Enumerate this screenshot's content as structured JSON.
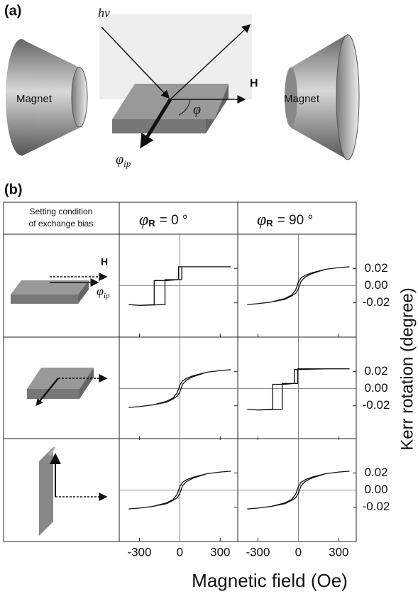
{
  "figure": {
    "panel_a": "(a)",
    "panel_b": "(b)",
    "photon": "hν",
    "magnet_left": "Magnet",
    "magnet_right": "Magnet",
    "field": "H",
    "angle": "φ",
    "in_plane": {
      "symbol": "φ",
      "subscript": "ip"
    },
    "table_header": [
      "Setting condition",
      "of exchange bias"
    ],
    "column_headers": [
      {
        "symbol": "φ",
        "subscript": "R",
        "value": "=  0 °"
      },
      {
        "symbol": "φ",
        "subscript": "R",
        "value": "=  90 °"
      }
    ],
    "row1_field": "H",
    "row1_in_plane": {
      "symbol": "φ",
      "subscript": "ip"
    },
    "y_label": "Kerr rotation (degree)",
    "x_label": "Magnetic field (Oe)"
  },
  "chart_data": [
    {
      "type": "line",
      "x": [
        380,
        200,
        -10,
        -10,
        -100,
        -190,
        -190,
        -300,
        -380,
        -380,
        -300,
        -110,
        -110,
        -50,
        15,
        15,
        200,
        380
      ],
      "values": [
        0.022,
        0.022,
        0.022,
        0.007,
        0.006,
        0.006,
        -0.022,
        -0.023,
        -0.022,
        -0.022,
        -0.023,
        -0.022,
        0.007,
        0.007,
        0.007,
        0.022,
        0.022,
        0.022
      ],
      "color": "#111",
      "xlim": [
        -450,
        430
      ],
      "ylim": [
        -0.06,
        0.06
      ],
      "xticks": [
        -300,
        0,
        300
      ],
      "yticks": [
        0.02,
        0,
        {
          "value": -0.02,
          "label": "-0.02"
        }
      ]
    },
    {
      "type": "line",
      "x": [
        380,
        300,
        200,
        100,
        50,
        20,
        0,
        -20,
        -50,
        -100,
        -200,
        -300,
        -380,
        -380,
        -300,
        -200,
        -100,
        -50,
        -20,
        0,
        20,
        50,
        100,
        200,
        300,
        380
      ],
      "values": [
        0.022,
        0.021,
        0.019,
        0.015,
        0.012,
        0.009,
        0.004,
        -0.005,
        -0.011,
        -0.015,
        -0.019,
        -0.021,
        -0.022,
        -0.022,
        -0.021,
        -0.019,
        -0.016,
        -0.012,
        -0.009,
        -0.004,
        0.005,
        0.01,
        0.014,
        0.019,
        0.021,
        0.022
      ],
      "color": "#111",
      "xlim": [
        -450,
        430
      ],
      "ylim": [
        -0.06,
        0.06
      ],
      "xticks": [
        -300,
        0,
        300
      ],
      "yticks": [
        0.02,
        {
          "value": 0,
          "label": "0.00"
        },
        {
          "value": -0.02,
          "label": "-0.02"
        }
      ]
    },
    {
      "type": "line",
      "x": [
        380,
        300,
        200,
        100,
        50,
        20,
        0,
        -20,
        -50,
        -100,
        -200,
        -300,
        -380,
        -380,
        -300,
        -200,
        -100,
        -50,
        -20,
        0,
        20,
        50,
        100,
        200,
        300,
        380
      ],
      "values": [
        0.022,
        0.021,
        0.019,
        0.015,
        0.012,
        0.009,
        0.004,
        -0.005,
        -0.011,
        -0.015,
        -0.019,
        -0.021,
        -0.022,
        -0.022,
        -0.021,
        -0.019,
        -0.016,
        -0.012,
        -0.009,
        -0.004,
        0.005,
        0.01,
        0.014,
        0.019,
        0.021,
        0.022
      ],
      "color": "#111",
      "xlim": [
        -450,
        430
      ],
      "ylim": [
        -0.06,
        0.06
      ],
      "xticks": [
        -300,
        0,
        300
      ],
      "yticks": [
        0.02,
        0,
        {
          "value": -0.02,
          "label": "-0.02"
        }
      ]
    },
    {
      "type": "line",
      "x": [
        380,
        200,
        -30,
        -30,
        -100,
        -190,
        -190,
        -300,
        -380,
        -380,
        -300,
        -120,
        -120,
        -60,
        -5,
        -5,
        200,
        380
      ],
      "values": [
        0.023,
        0.023,
        0.022,
        0.006,
        0.005,
        0.005,
        -0.024,
        -0.025,
        -0.024,
        -0.024,
        -0.025,
        -0.024,
        0.006,
        0.006,
        0.006,
        0.023,
        0.023,
        0.023
      ],
      "color": "#111",
      "xlim": [
        -450,
        430
      ],
      "ylim": [
        -0.06,
        0.06
      ],
      "xticks": [
        -300,
        0,
        300
      ],
      "yticks": [
        0.02,
        {
          "value": 0,
          "label": "0.00"
        },
        {
          "value": -0.02,
          "label": "-0.02"
        }
      ]
    },
    {
      "type": "line",
      "x": [
        380,
        300,
        200,
        100,
        50,
        20,
        0,
        -20,
        -50,
        -100,
        -200,
        -300,
        -380,
        -380,
        -300,
        -200,
        -100,
        -50,
        -20,
        0,
        20,
        50,
        100,
        200,
        300,
        380
      ],
      "values": [
        0.022,
        0.021,
        0.019,
        0.015,
        0.012,
        0.009,
        0.004,
        -0.005,
        -0.011,
        -0.015,
        -0.019,
        -0.021,
        -0.022,
        -0.022,
        -0.021,
        -0.019,
        -0.016,
        -0.012,
        -0.009,
        -0.004,
        0.005,
        0.01,
        0.014,
        0.019,
        0.021,
        0.022
      ],
      "color": "#111",
      "xlim": [
        -450,
        430
      ],
      "ylim": [
        -0.06,
        0.06
      ],
      "xticks": [
        {
          "value": -300,
          "label": "-300"
        },
        0,
        300
      ],
      "yticks": [
        0.02,
        0,
        {
          "value": -0.02,
          "label": "-0.02"
        }
      ]
    },
    {
      "type": "line",
      "x": [
        380,
        300,
        200,
        100,
        50,
        20,
        0,
        -20,
        -50,
        -100,
        -200,
        -300,
        -380,
        -380,
        -300,
        -200,
        -100,
        -50,
        -20,
        0,
        20,
        50,
        100,
        200,
        300,
        380
      ],
      "values": [
        0.022,
        0.021,
        0.019,
        0.015,
        0.012,
        0.009,
        0.004,
        -0.005,
        -0.011,
        -0.015,
        -0.019,
        -0.021,
        -0.022,
        -0.022,
        -0.021,
        -0.019,
        -0.016,
        -0.012,
        -0.009,
        -0.004,
        0.005,
        0.01,
        0.014,
        0.019,
        0.021,
        0.022
      ],
      "color": "#111",
      "xlim": [
        -450,
        430
      ],
      "ylim": [
        -0.06,
        0.06
      ],
      "xticks": [
        {
          "value": -300,
          "label": "-300"
        },
        0,
        300
      ],
      "yticks": [
        0.02,
        {
          "value": 0,
          "label": "0.00"
        },
        {
          "value": -0.02,
          "label": "-0.02"
        }
      ]
    }
  ]
}
